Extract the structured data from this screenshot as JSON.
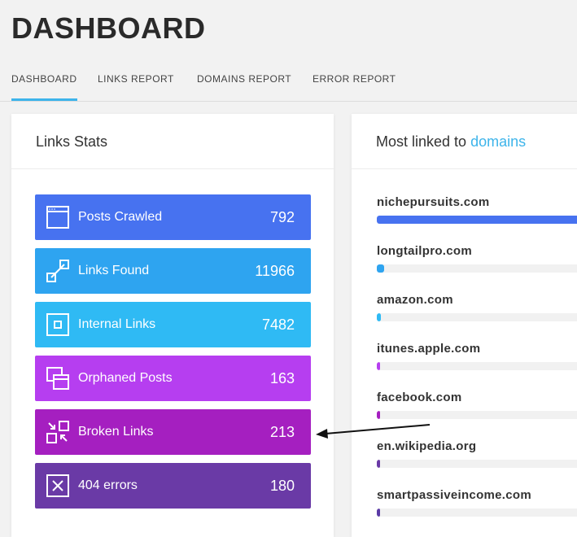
{
  "header": {
    "title": "DASHBOARD"
  },
  "tabs": [
    {
      "label": "DASHBOARD",
      "active": true
    },
    {
      "label": "LINKS REPORT"
    },
    {
      "label": "DOMAINS REPORT"
    },
    {
      "label": "ERROR REPORT"
    }
  ],
  "links_stats": {
    "title": "Links Stats",
    "items": [
      {
        "label": "Posts Crawled",
        "value": "792",
        "icon": "browser-window-icon",
        "color": "#4772f0"
      },
      {
        "label": "Links Found",
        "value": "11966",
        "icon": "link-icon",
        "color": "#2ea4f0"
      },
      {
        "label": "Internal Links",
        "value": "7482",
        "icon": "internal-square-icon",
        "color": "#2fbaf4"
      },
      {
        "label": "Orphaned Posts",
        "value": "163",
        "icon": "stacked-windows-icon",
        "color": "#b63ef0"
      },
      {
        "label": "Broken Links",
        "value": "213",
        "icon": "broken-link-icon",
        "color": "#a51fc0"
      },
      {
        "label": "404 errors",
        "value": "180",
        "icon": "x-box-icon",
        "color": "#6a3aa6"
      }
    ]
  },
  "domains": {
    "title_prefix": "Most linked to ",
    "title_accent": "domains",
    "items": [
      {
        "name": "nichepursuits.com",
        "percent": 100,
        "color": "#4772f0"
      },
      {
        "name": "longtailpro.com",
        "percent": 3.5,
        "color": "#2ea4f0"
      },
      {
        "name": "amazon.com",
        "percent": 2,
        "color": "#2fbaf4"
      },
      {
        "name": "itunes.apple.com",
        "percent": 1.5,
        "color": "#b63ef0"
      },
      {
        "name": "facebook.com",
        "percent": 1.5,
        "color": "#a51fc0"
      },
      {
        "name": "en.wikipedia.org",
        "percent": 1,
        "color": "#6a3aa6"
      },
      {
        "name": "smartpassiveincome.com",
        "percent": 1,
        "color": "#5a3aa6"
      }
    ]
  }
}
